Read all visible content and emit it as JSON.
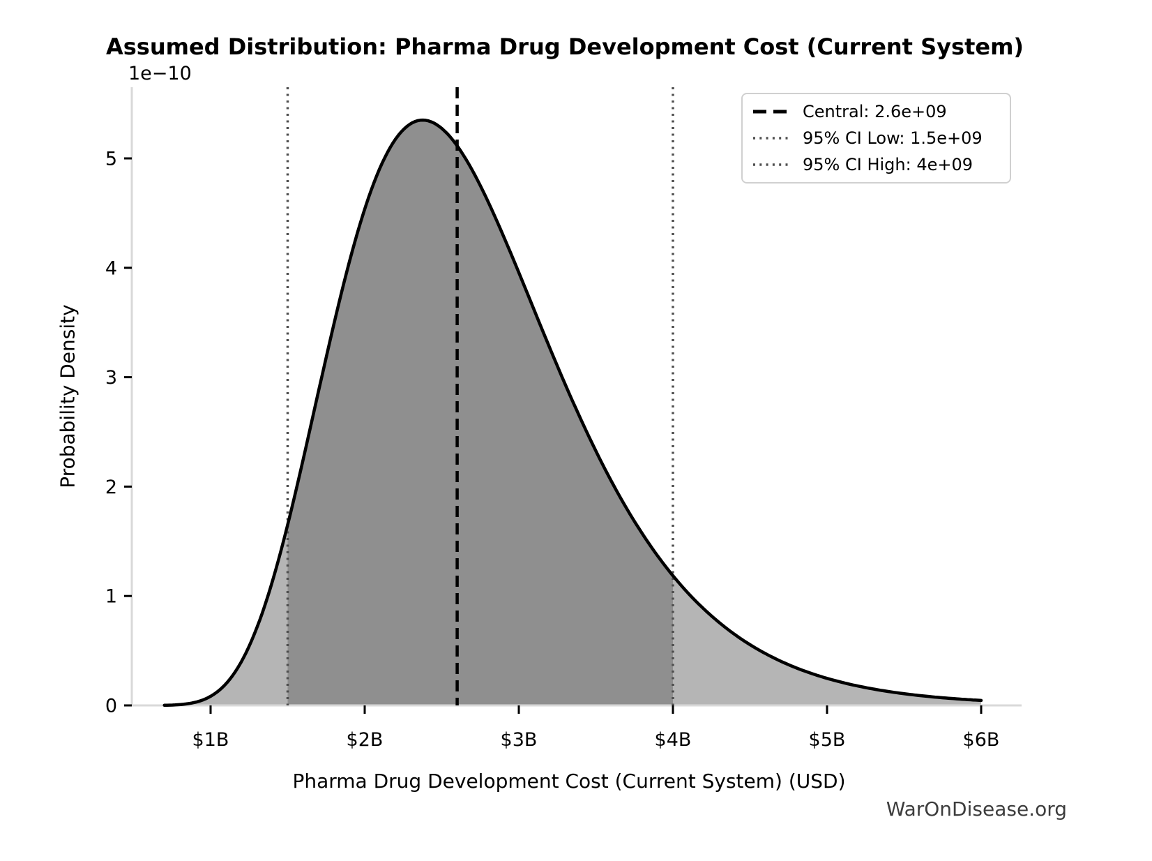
{
  "watermark": "WarOnDisease.org",
  "chart_data": {
    "type": "area",
    "title": "Assumed Distribution: Pharma Drug Development Cost (Current System)",
    "xlabel": "Pharma Drug Development Cost (Current System) (USD)",
    "ylabel": "Probability Density",
    "y_offset_label": "1e−10",
    "x_tick_labels": [
      "$1B",
      "$2B",
      "$3B",
      "$4B",
      "$5B",
      "$6B"
    ],
    "x_tick_values_b": [
      1,
      2,
      3,
      4,
      5,
      6
    ],
    "y_tick_labels": [
      "0",
      "1",
      "2",
      "3",
      "4",
      "5"
    ],
    "y_tick_values": [
      0,
      1,
      2,
      3,
      4,
      5
    ],
    "xlim_b": [
      0.49,
      6.26
    ],
    "ylim_1e10": [
      0,
      5.65
    ],
    "grid": false,
    "legend_position": "upper right",
    "distribution": {
      "type": "lognormal",
      "median_usd": 2600000000,
      "sigma_log": 0.3,
      "curve_x_range_b": [
        0.7,
        6.0
      ],
      "peak": {
        "x_b": 2.38,
        "density_1e10": 5.35
      }
    },
    "markers": {
      "central_usd": 2600000000,
      "ci_low_usd": 1500000000,
      "ci_high_usd": 4000000000,
      "central_b": 2.6,
      "ci_low_b": 1.5,
      "ci_high_b": 4.0
    },
    "legend": [
      {
        "label": "Central: 2.6e+09",
        "style": "dashed",
        "color": "#000000"
      },
      {
        "label": "95% CI Low: 1.5e+09",
        "style": "dotted",
        "color": "#4f4f4f"
      },
      {
        "label": "95% CI High: 4e+09",
        "style": "dotted",
        "color": "#4f4f4f"
      }
    ],
    "sample_points_x_b_density_1e10": [
      [
        0.8,
        0.007
      ],
      [
        1.0,
        0.083
      ],
      [
        1.2,
        0.4
      ],
      [
        1.4,
        1.13
      ],
      [
        1.5,
        1.65
      ],
      [
        1.6,
        2.24
      ],
      [
        1.8,
        3.49
      ],
      [
        2.0,
        4.54
      ],
      [
        2.2,
        5.18
      ],
      [
        2.4,
        5.35
      ],
      [
        2.6,
        5.11
      ],
      [
        2.8,
        4.61
      ],
      [
        3.0,
        3.96
      ],
      [
        3.2,
        3.27
      ],
      [
        3.4,
        2.62
      ],
      [
        3.6,
        2.05
      ],
      [
        3.8,
        1.57
      ],
      [
        4.0,
        1.19
      ],
      [
        4.5,
        0.56
      ],
      [
        5.0,
        0.25
      ],
      [
        5.5,
        0.11
      ],
      [
        6.0,
        0.05
      ]
    ],
    "colors": {
      "curve": "#000000",
      "fill_light": "#b5b5b5",
      "fill_dark": "#8f8f8f",
      "spine": "#d9d9d9",
      "tick": "#000000",
      "central_line": "#000000",
      "ci_line": "#4f4f4f",
      "watermark": "#3d3d3d"
    }
  }
}
